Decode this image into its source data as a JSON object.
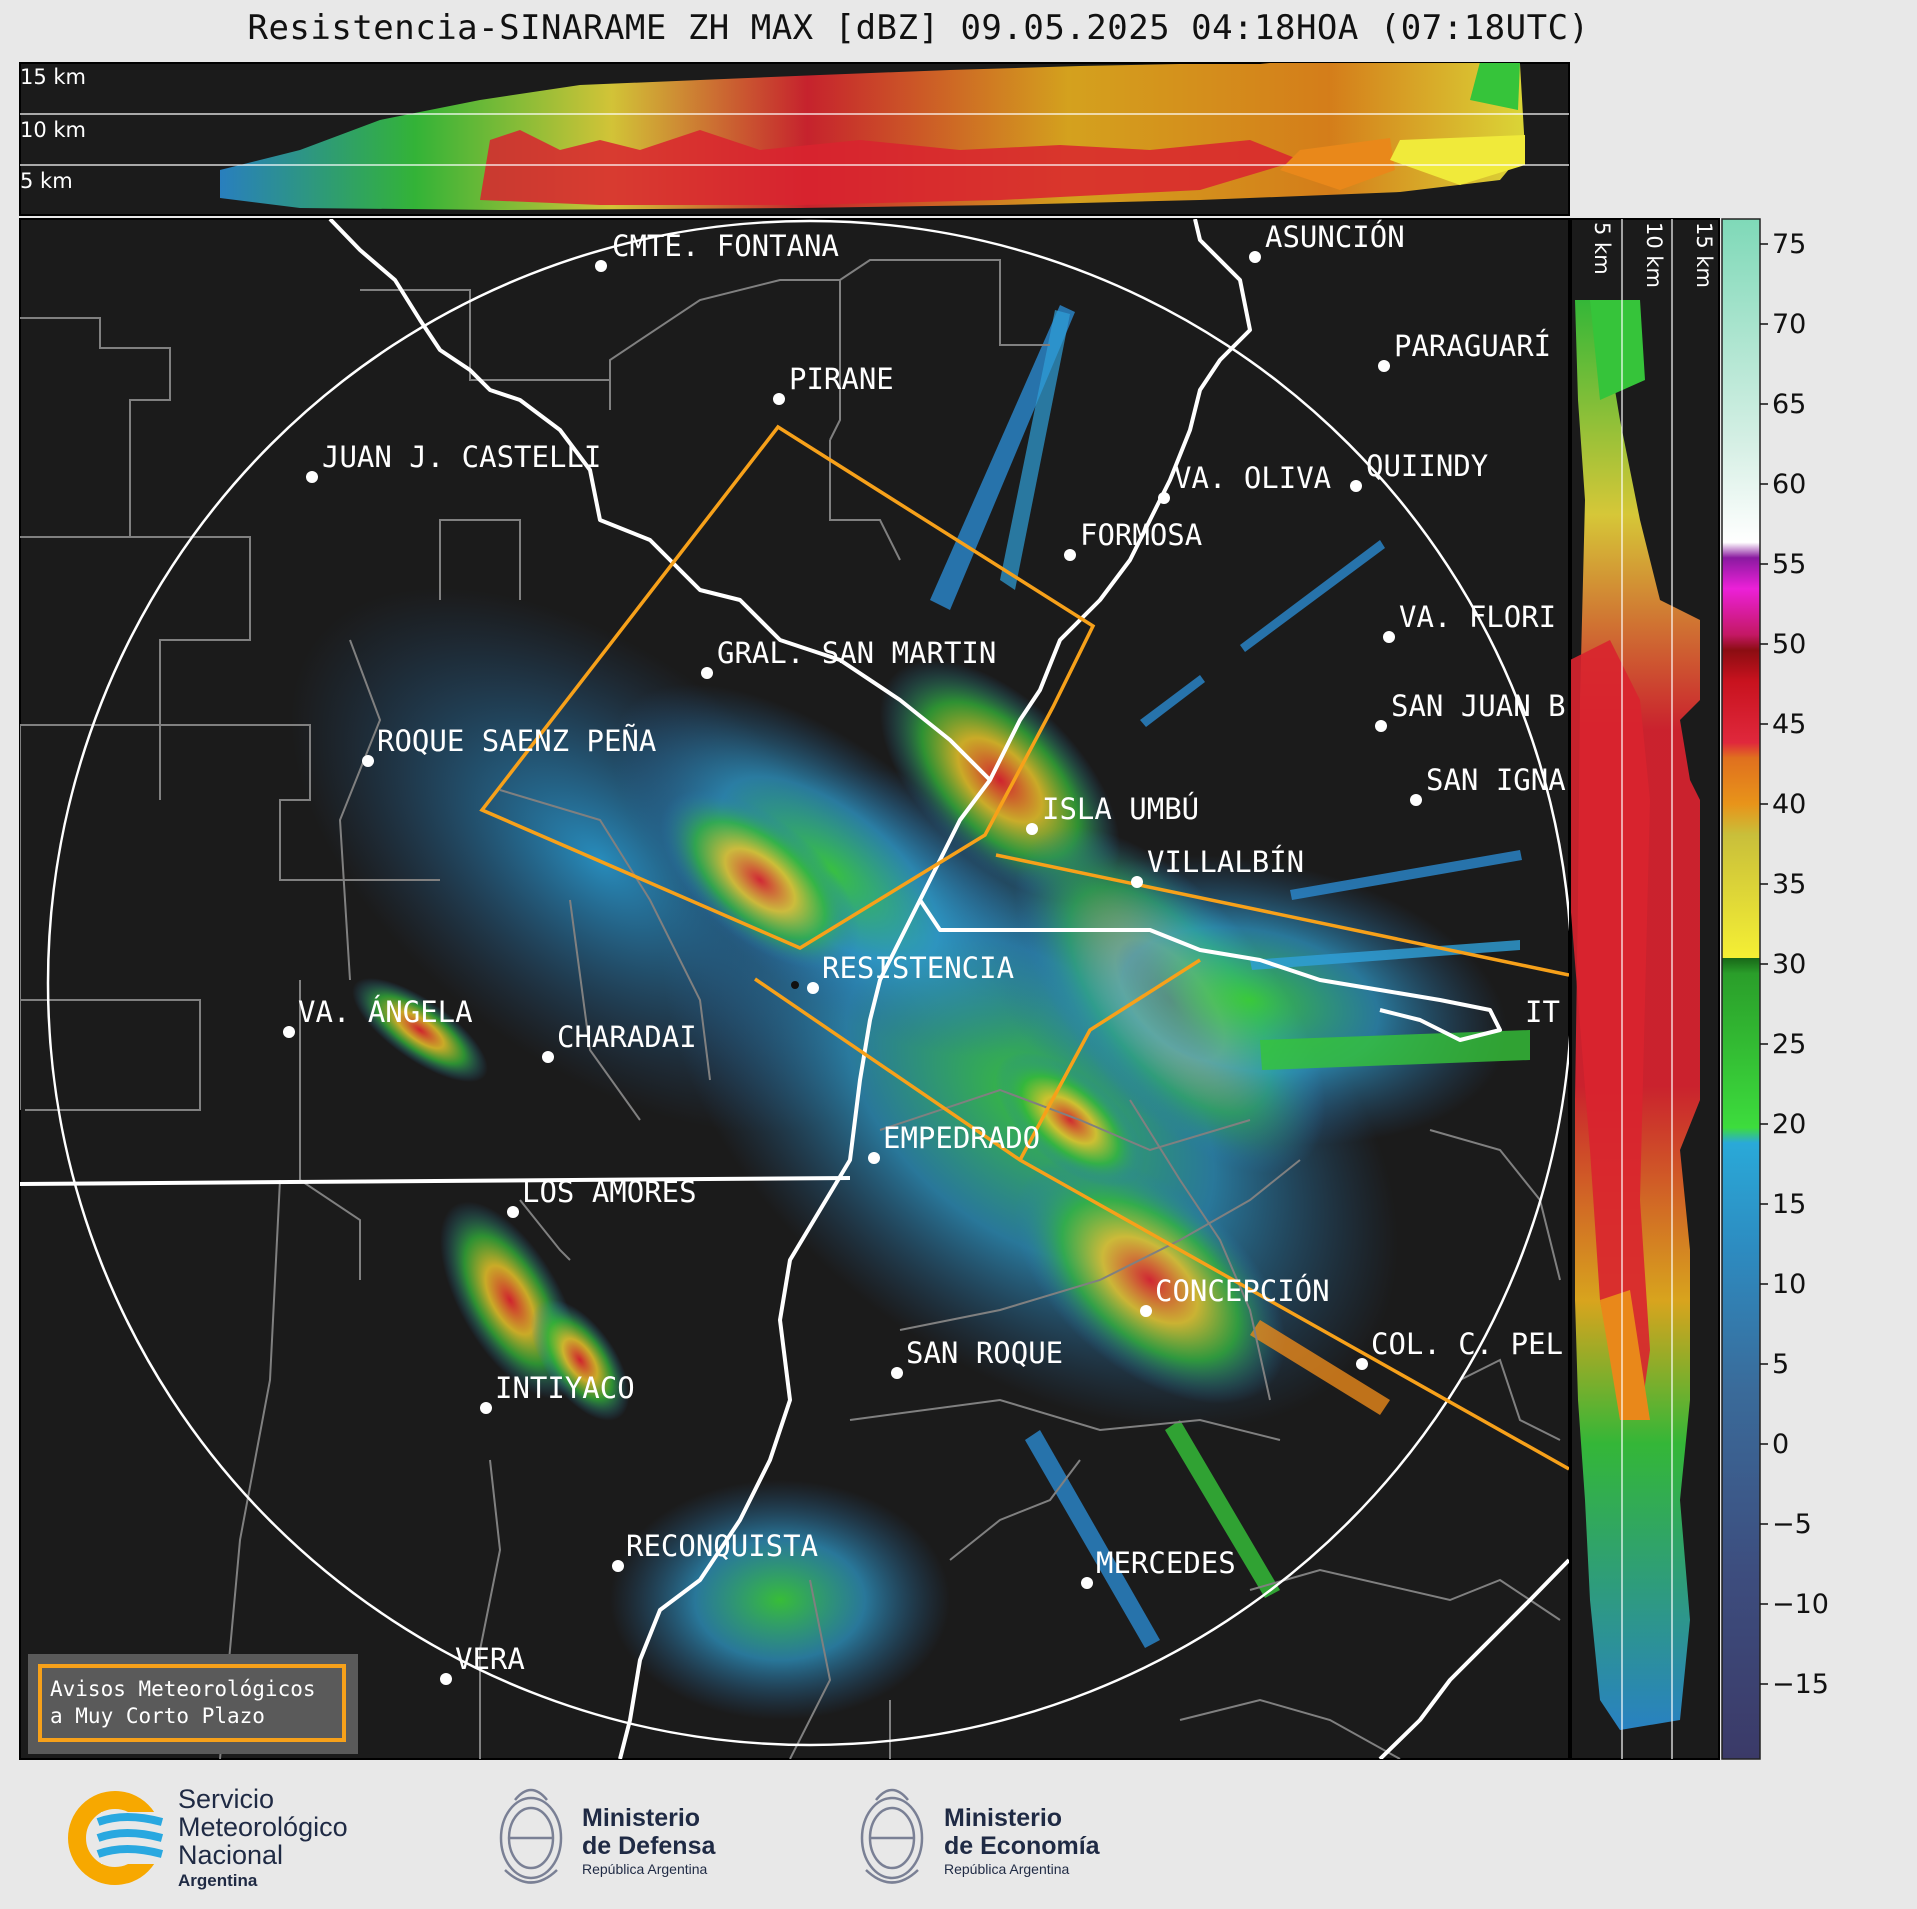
{
  "title": "Resistencia-SINARAME ZH MAX [dBZ] 09.05.2025 04:18HOA (07:18UTC)",
  "top_panel_heights": [
    "15 km",
    "10 km",
    "5 km"
  ],
  "side_panel_heights": [
    "5 km",
    "10 km",
    "15 km"
  ],
  "cities": [
    {
      "name": "CMTE. FONTANA"
    },
    {
      "name": "ASUNCIÓN"
    },
    {
      "name": "PARAGUARÍ"
    },
    {
      "name": "PIRANE"
    },
    {
      "name": "JUAN J. CASTELLI"
    },
    {
      "name": "VA. OLIVA"
    },
    {
      "name": "QUIINDY"
    },
    {
      "name": "FORMOSA"
    },
    {
      "name": "VA. FLORI"
    },
    {
      "name": "GRAL. SAN MARTIN"
    },
    {
      "name": "SAN JUAN B"
    },
    {
      "name": "ROQUE SAENZ PEÑA"
    },
    {
      "name": "SAN IGNA"
    },
    {
      "name": "ISLA UMBÚ"
    },
    {
      "name": "VILLALBÍN"
    },
    {
      "name": "RESISTENCIA"
    },
    {
      "name": "VA. ÁNGELA"
    },
    {
      "name": "CHARADAI"
    },
    {
      "name": "IT"
    },
    {
      "name": "EMPEDRADO"
    },
    {
      "name": "LOS AMORES"
    },
    {
      "name": "CONCEPCIÓN"
    },
    {
      "name": "SAN ROQUE"
    },
    {
      "name": "COL. C. PEL"
    },
    {
      "name": "INTIYACO"
    },
    {
      "name": "RECONQUISTA"
    },
    {
      "name": "MERCEDES"
    },
    {
      "name": "VERA"
    }
  ],
  "colorbar": {
    "ticks": [
      "75",
      "70",
      "65",
      "60",
      "55",
      "50",
      "45",
      "40",
      "35",
      "30",
      "25",
      "20",
      "15",
      "10",
      "5",
      "0",
      "−5",
      "−10",
      "−15"
    ],
    "unit": "dBZ"
  },
  "legend_box": {
    "line1": "Avisos Meteorológicos",
    "line2": "a Muy Corto Plazo",
    "border_color": "#f7a11a"
  },
  "logos": {
    "smn": {
      "line1": "Servicio",
      "line2": "Meteorológico",
      "line3": "Nacional",
      "line4": "Argentina"
    },
    "defensa": {
      "line1": "Ministerio",
      "line2": "de Defensa",
      "line3": "República Argentina"
    },
    "economia": {
      "line1": "Ministerio",
      "line2": "de Economía",
      "line3": "República Argentina"
    }
  },
  "colors": {
    "background": "#1b1b1b",
    "warning_polygon": "#f7a11a",
    "rivers": "#ffffff",
    "borders": "#808080"
  }
}
